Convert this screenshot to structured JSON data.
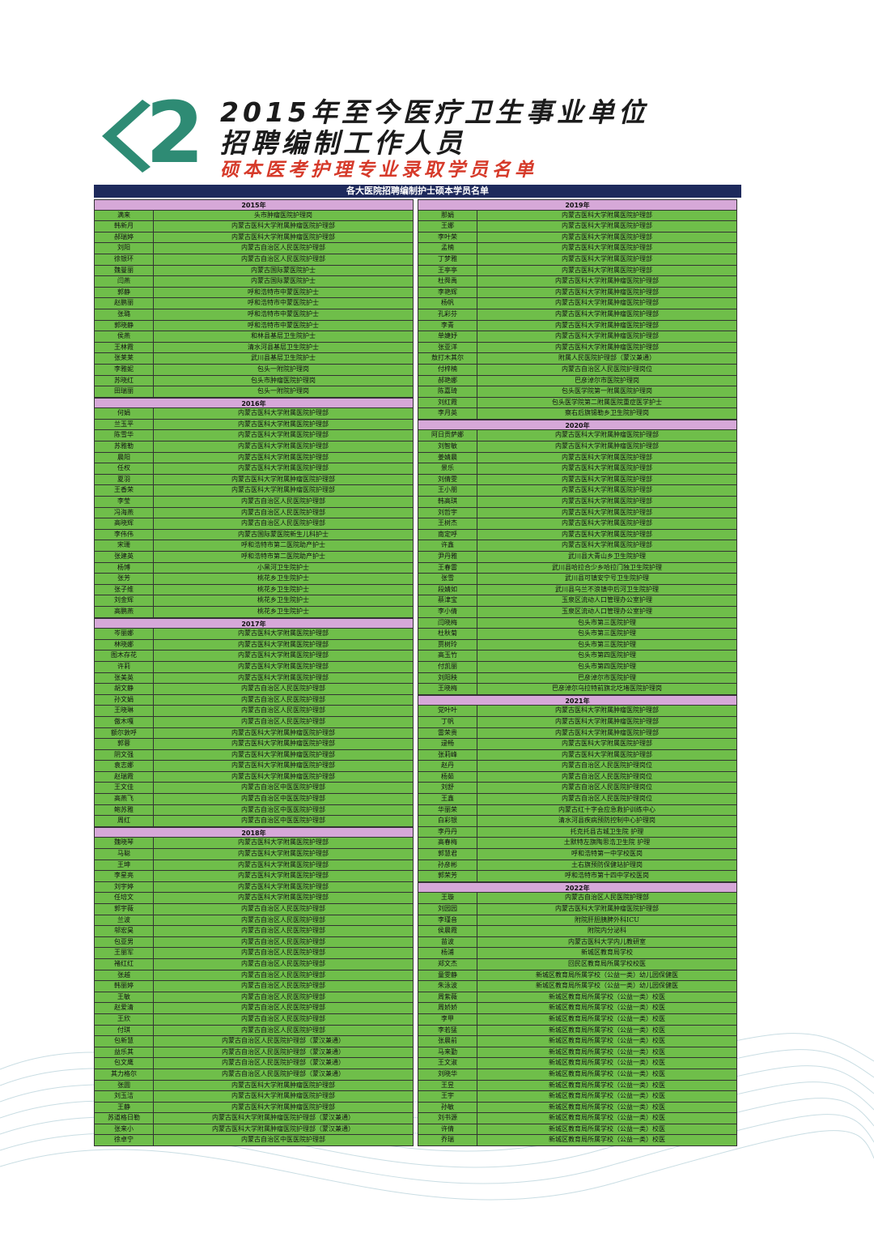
{
  "header": {
    "num": "2",
    "title_line1": "2015年至今医疗卫生事业单位",
    "title_line2": "招聘编制工作人员",
    "subtitle": "硕本医考护理专业录取学员名单",
    "table_title": "各大医院招聘编制护士硕本学员名单",
    "accent_color": "#2e8b74",
    "cell_color": "#6fbe4a",
    "year_color": "#d6a8d8"
  },
  "left_column": [
    {
      "year": "2015年",
      "rows": [
        [
          "满来",
          "头市肿瘤医院护理岗"
        ],
        [
          "韩新月",
          "内蒙古医科大学附属肿瘤医院护理部"
        ],
        [
          "郝瑞婷",
          "内蒙古医科大学附属肿瘤医院护理部"
        ],
        [
          "刘阳",
          "内蒙古自治区人民医院护理部"
        ],
        [
          "徐银环",
          "内蒙古自治区人民医院护理部"
        ],
        [
          "魏曼丽",
          "内蒙古国际蒙医院护士"
        ],
        [
          "闫燕",
          "内蒙古国际蒙医院护士"
        ],
        [
          "郭静",
          "呼和浩特市中蒙医院护士"
        ],
        [
          "赵鹏丽",
          "呼和浩特市中蒙医院护士"
        ],
        [
          "张璐",
          "呼和浩特市中蒙医院护士"
        ],
        [
          "郭晓静",
          "呼和浩特市中蒙医院护士"
        ],
        [
          "侯燕",
          "和林县基层卫生院护士"
        ],
        [
          "王林霞",
          "清水河县基层卫生院护士"
        ],
        [
          "张莱莱",
          "武川县基层卫生院护士"
        ],
        [
          "李雅妮",
          "包头一附院护理岗"
        ],
        [
          "苏晓红",
          "包头市肿瘤医院护理岗"
        ],
        [
          "田瑞丽",
          "包头一附院护理岗"
        ]
      ]
    },
    {
      "year": "2016年",
      "rows": [
        [
          "何娟",
          "内蒙古医科大学附属医院护理部"
        ],
        [
          "兰玉平",
          "内蒙古医科大学附属医院护理部"
        ],
        [
          "陈雪华",
          "内蒙古医科大学附属医院护理部"
        ],
        [
          "苏雅勒",
          "内蒙古医科大学附属医院护理部"
        ],
        [
          "晨阳",
          "内蒙古医科大学附属医院护理部"
        ],
        [
          "任权",
          "内蒙古医科大学附属医院护理部"
        ],
        [
          "夏羽",
          "内蒙古医科大学附属肿瘤医院护理部"
        ],
        [
          "王香荣",
          "内蒙古医科大学附属肿瘤医院护理部"
        ],
        [
          "李莹",
          "内蒙古自治区人民医院护理部"
        ],
        [
          "冯海燕",
          "内蒙古自治区人民医院护理部"
        ],
        [
          "高晓辉",
          "内蒙古自治区人民医院护理部"
        ],
        [
          "李伟伟",
          "内蒙古国际蒙医院新生儿科护士"
        ],
        [
          "宋珊",
          "呼和浩特市第二医院助产护士"
        ],
        [
          "张建英",
          "呼和浩特市第二医院助产护士"
        ],
        [
          "杨博",
          "小黑河卫生院护士"
        ],
        [
          "张芳",
          "桃花乡卫生院护士"
        ],
        [
          "张子维",
          "桃花乡卫生院护士"
        ],
        [
          "刘金辉",
          "桃花乡卫生院护士"
        ],
        [
          "高鹏燕",
          "桃花乡卫生院护士"
        ]
      ]
    },
    {
      "year": "2017年",
      "rows": [
        [
          "岑丽娜",
          "内蒙古医科大学附属医院护理部"
        ],
        [
          "林晓娜",
          "内蒙古医科大学附属医院护理部"
        ],
        [
          "图木存花",
          "内蒙古医科大学附属医院护理部"
        ],
        [
          "许莉",
          "内蒙古医科大学附属医院护理部"
        ],
        [
          "张美英",
          "内蒙古医科大学附属医院护理部"
        ],
        [
          "胡文静",
          "内蒙古自治区人民医院护理部"
        ],
        [
          "孙文娟",
          "内蒙古自治区人民医院护理部"
        ],
        [
          "王晓琳",
          "内蒙古自治区人民医院护理部"
        ],
        [
          "傲木嘎",
          "内蒙古自治区人民医院护理部"
        ],
        [
          "额尔敦呼",
          "内蒙古医科大学附属肿瘤医院护理部"
        ],
        [
          "郭蓉",
          "内蒙古医科大学附属肿瘤医院护理部"
        ],
        [
          "阴文强",
          "内蒙古医科大学附属肿瘤医院护理部"
        ],
        [
          "袁志娜",
          "内蒙古医科大学附属肿瘤医院护理部"
        ],
        [
          "赵瑞霞",
          "内蒙古医科大学附属肿瘤医院护理部"
        ],
        [
          "王文佳",
          "内蒙古自治区中医医院护理部"
        ],
        [
          "高燕飞",
          "内蒙古自治区中医医院护理部"
        ],
        [
          "鲍苏雅",
          "内蒙古自治区中医医院护理部"
        ],
        [
          "周红",
          "内蒙古自治区中医医院护理部"
        ]
      ]
    },
    {
      "year": "2018年",
      "rows": [
        [
          "魏晓琴",
          "内蒙古医科大学附属医院护理部"
        ],
        [
          "马聪",
          "内蒙古医科大学附属医院护理部"
        ],
        [
          "王坤",
          "内蒙古医科大学附属医院护理部"
        ],
        [
          "李星亮",
          "内蒙古医科大学附属医院护理部"
        ],
        [
          "刘宇婷",
          "内蒙古医科大学附属医院护理部"
        ],
        [
          "任培文",
          "内蒙古医科大学附属医院护理部"
        ],
        [
          "郭宇薇",
          "内蒙古自治区人民医院护理部"
        ],
        [
          "兰波",
          "内蒙古自治区人民医院护理部"
        ],
        [
          "邬宏昊",
          "内蒙古自治区人民医院护理部"
        ],
        [
          "包亚男",
          "内蒙古自治区人民医院护理部"
        ],
        [
          "王丽军",
          "内蒙古自治区人民医院护理部"
        ],
        [
          "褚红红",
          "内蒙古自治区人民医院护理部"
        ],
        [
          "张越",
          "内蒙古自治区人民医院护理部"
        ],
        [
          "韩丽婷",
          "内蒙古自治区人民医院护理部"
        ],
        [
          "王敏",
          "内蒙古自治区人民医院护理部"
        ],
        [
          "赵爱清",
          "内蒙古自治区人民医院护理部"
        ],
        [
          "王欣",
          "内蒙古自治区人民医院护理部"
        ],
        [
          "付琪",
          "内蒙古自治区人民医院护理部"
        ],
        [
          "包新慧",
          "内蒙古自治区人民医院护理部（蒙汉兼通）"
        ],
        [
          "益乐其",
          "内蒙古自治区人民医院护理部（蒙汉兼通）"
        ],
        [
          "包文鹰",
          "内蒙古自治区人民医院护理部（蒙汉兼通）"
        ],
        [
          "其力格尔",
          "内蒙古自治区人民医院护理部（蒙汉兼通）"
        ],
        [
          "张圆",
          "内蒙古医科大学附属肿瘤医院护理部"
        ],
        [
          "刘玉洁",
          "内蒙古医科大学附属肿瘤医院护理部"
        ],
        [
          "王静",
          "内蒙古医科大学附属肿瘤医院护理部"
        ],
        [
          "苏道格日勒",
          "内蒙古医科大学附属肿瘤医院护理部（蒙汉兼通）"
        ],
        [
          "张来小",
          "内蒙古医科大学附属肿瘤医院护理部（蒙汉兼通）"
        ],
        [
          "徐卓宁",
          "内蒙古自治区中医医院护理部"
        ]
      ]
    }
  ],
  "right_column": [
    {
      "year": "2019年",
      "rows": [
        [
          "那娟",
          "内蒙古医科大学附属医院护理部"
        ],
        [
          "王娜",
          "内蒙古医科大学附属医院护理部"
        ],
        [
          "李叶荣",
          "内蒙古医科大学附属医院护理部"
        ],
        [
          "孟楠",
          "内蒙古医科大学附属医院护理部"
        ],
        [
          "丁梦雅",
          "内蒙古医科大学附属医院护理部"
        ],
        [
          "王亭亭",
          "内蒙古医科大学附属医院护理部"
        ],
        [
          "杜舜禹",
          "内蒙古医科大学附属肿瘤医院护理部"
        ],
        [
          "李艳辉",
          "内蒙古医科大学附属肿瘤医院护理部"
        ],
        [
          "杨帆",
          "内蒙古医科大学附属肿瘤医院护理部"
        ],
        [
          "孔彩芬",
          "内蒙古医科大学附属肿瘤医院护理部"
        ],
        [
          "李青",
          "内蒙古医科大学附属肿瘤医院护理部"
        ],
        [
          "单婕妤",
          "内蒙古医科大学附属肿瘤医院护理部"
        ],
        [
          "张亚洋",
          "内蒙古医科大学附属肿瘤医院护理部"
        ],
        [
          "敖打木其尔",
          "附属人民医院护理部（蒙汉兼通）"
        ],
        [
          "付梓楠",
          "内蒙古自治区人民医院护理岗位"
        ],
        [
          "郝艳娜",
          "巴彦淖尔市医院护理岗"
        ],
        [
          "陈嘉琦",
          "包头医学院第一附属医院护理岗"
        ],
        [
          "刘红霞",
          "包头医学院第二附属医院重症医学护士"
        ],
        [
          "李月英",
          "察右后旗锡勒乡卫生院护理岗"
        ]
      ]
    },
    {
      "year": "2020年",
      "rows": [
        [
          "阿日贡萨娜",
          "内蒙古医科大学附属肿瘤医院护理部"
        ],
        [
          "刘智敏",
          "内蒙古医科大学附属肿瘤医院护理部"
        ],
        [
          "姜婧晨",
          "内蒙古医科大学附属医院护理部"
        ],
        [
          "景乐",
          "内蒙古医科大学附属医院护理部"
        ],
        [
          "刘倩雯",
          "内蒙古医科大学附属医院护理部"
        ],
        [
          "王小朋",
          "内蒙古医科大学附属医院护理部"
        ],
        [
          "韩高琪",
          "内蒙古医科大学附属医院护理部"
        ],
        [
          "刘哲宇",
          "内蒙古医科大学附属医院护理部"
        ],
        [
          "王树杰",
          "内蒙古医科大学附属医院护理部"
        ],
        [
          "南定呼",
          "内蒙古医科大学附属医院护理部"
        ],
        [
          "许鑫",
          "内蒙古医科大学附属医院护理部"
        ],
        [
          "尹丹雅",
          "武川县大青山乡卫生院护理"
        ],
        [
          "王春雷",
          "武川县哈拉合少乡哈拉门独卫生院护理"
        ],
        [
          "张雪",
          "武川县可镇安宁号卫生院护理"
        ],
        [
          "段婧如",
          "武川县乌兰不浪镇中后河卫生院护理"
        ],
        [
          "蔡津宝",
          "玉泉区流动人口管理办公室护理"
        ],
        [
          "李小倩",
          "玉泉区流动人口管理办公室护理"
        ],
        [
          "闫晓梅",
          "包头市第三医院护理"
        ],
        [
          "杜秋菊",
          "包头市第三医院护理"
        ],
        [
          "贾树玲",
          "包头市第三医院护理"
        ],
        [
          "高玉竹",
          "包头市第四医院护理"
        ],
        [
          "付凯丽",
          "包头市第四医院护理"
        ],
        [
          "刘阳秧",
          "巴彦淖尔市医院护理"
        ],
        [
          "王晓梅",
          "巴彦淖尔乌拉特前旗北圪堵医院护理岗"
        ]
      ]
    },
    {
      "year": "2021年",
      "rows": [
        [
          "党叶叶",
          "内蒙古医科大学附属肿瘤医院护理部"
        ],
        [
          "丁帆",
          "内蒙古医科大学附属肿瘤医院护理部"
        ],
        [
          "雷荣贵",
          "内蒙古医科大学附属肿瘤医院护理部"
        ],
        [
          "逯畅",
          "内蒙古医科大学附属医院护理部"
        ],
        [
          "张莉峰",
          "内蒙古医科大学附属医院护理部"
        ],
        [
          "赵丹",
          "内蒙古自治区人民医院护理岗位"
        ],
        [
          "杨茹",
          "内蒙古自治区人民医院护理岗位"
        ],
        [
          "刘舒",
          "内蒙古自治区人民医院护理岗位"
        ],
        [
          "王鑫",
          "内蒙古自治区人民医院护理岗位"
        ],
        [
          "华丽荣",
          "内蒙古红十字会应急救护训练中心"
        ],
        [
          "白彩银",
          "清水河县疾病预防控制中心护理岗"
        ],
        [
          "李丹丹",
          "托克托县古城卫生院 护理"
        ],
        [
          "高春梅",
          "土默特左旗陶思浩卫生院 护理"
        ],
        [
          "郭慧君",
          "呼和浩特第一中学校医岗"
        ],
        [
          "孙彦彬",
          "土右旗预防保健站护理岗"
        ],
        [
          "郭荣芳",
          "呼和浩特市第十四中学校医岗"
        ]
      ]
    },
    {
      "year": "2022年",
      "rows": [
        [
          "王璇",
          "内蒙古自治区人民医院护理部"
        ],
        [
          "刘园园",
          "内蒙古医科大学附属肿瘤医院护理部"
        ],
        [
          "李瑾音",
          "附院肝胆胰脾外科ICU"
        ],
        [
          "侯晨霞",
          "附院内分泌科"
        ],
        [
          "苗波",
          "内蒙古医科大学内儿教研室"
        ],
        [
          "杨浦",
          "新城区教育局学校"
        ],
        [
          "郑文杰",
          "回民区教育局所属学校校医"
        ],
        [
          "童雯静",
          "新城区教育局所属学校（公益一类）幼儿园保健医"
        ],
        [
          "朱泳波",
          "新城区教育局所属学校（公益一类）幼儿园保健医"
        ],
        [
          "周紫薇",
          "新城区教育局所属学校（公益一类）校医"
        ],
        [
          "周娇娇",
          "新城区教育局所属学校（公益一类）校医"
        ],
        [
          "李甲",
          "新城区教育局所属学校（公益一类）校医"
        ],
        [
          "李若猛",
          "新城区教育局所属学校（公益一类）校医"
        ],
        [
          "张晨前",
          "新城区教育局所属学校（公益一类）校医"
        ],
        [
          "马来勤",
          "新城区教育局所属学校（公益一类）校医"
        ],
        [
          "王文淑",
          "新城区教育局所属学校（公益一类）校医"
        ],
        [
          "刘晓华",
          "新城区教育局所属学校（公益一类）校医"
        ],
        [
          "王昱",
          "新城区教育局所属学校（公益一类）校医"
        ],
        [
          "王宇",
          "新城区教育局所属学校（公益一类）校医"
        ],
        [
          "孙敏",
          "新城区教育局所属学校（公益一类）校医"
        ],
        [
          "刘书源",
          "新城区教育局所属学校（公益一类）校医"
        ],
        [
          "许倩",
          "新城区教育局所属学校（公益一类）校医"
        ],
        [
          "乔瑞",
          "新城区教育局所属学校（公益一类）校医"
        ]
      ]
    }
  ]
}
